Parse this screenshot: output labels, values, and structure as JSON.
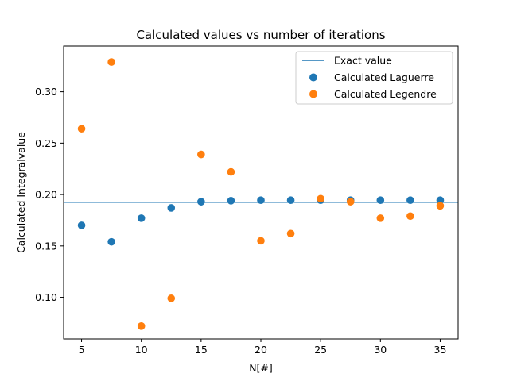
{
  "chart_data": {
    "type": "scatter",
    "title": "Calculated values vs number of iterations",
    "xlabel": "N[#]",
    "ylabel": "Calculated Integralvalue",
    "xlim": [
      3.5,
      36.5
    ],
    "ylim": [
      0.0595,
      0.3445
    ],
    "xticks": [
      5,
      10,
      15,
      20,
      25,
      30,
      35
    ],
    "yticks": [
      0.1,
      0.15,
      0.2,
      0.25,
      0.3
    ],
    "ytick_labels": [
      "0.10",
      "0.15",
      "0.20",
      "0.25",
      "0.30"
    ],
    "grid": false,
    "legend_position": "top-right",
    "reference_line": {
      "name": "Exact value",
      "y": 0.1925,
      "color": "#1f77b4"
    },
    "series": [
      {
        "name": "Calculated Laguerre",
        "color": "#1f77b4",
        "x": [
          5,
          7.5,
          10,
          12.5,
          15,
          17.5,
          20,
          22.5,
          25,
          27.5,
          30,
          32.5,
          35
        ],
        "y": [
          0.17,
          0.154,
          0.177,
          0.187,
          0.193,
          0.194,
          0.1945,
          0.1945,
          0.1945,
          0.1945,
          0.1945,
          0.1945,
          0.1945
        ]
      },
      {
        "name": "Calculated Legendre",
        "color": "#ff7f0e",
        "x": [
          5,
          7.5,
          10,
          12.5,
          15,
          17.5,
          20,
          22.5,
          25,
          27.5,
          30,
          32.5,
          35
        ],
        "y": [
          0.264,
          0.329,
          0.072,
          0.099,
          0.239,
          0.222,
          0.155,
          0.162,
          0.196,
          0.193,
          0.177,
          0.179,
          0.189
        ]
      }
    ]
  }
}
